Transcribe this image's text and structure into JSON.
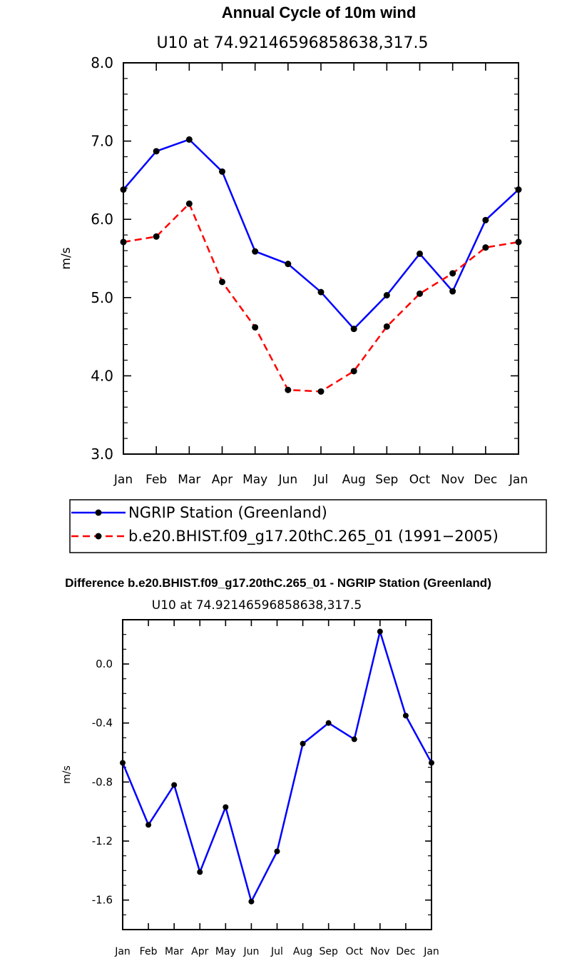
{
  "chart_data": [
    {
      "type": "line",
      "title": "Annual Cycle of 10m wind",
      "subtitle": "U10 at 74.92146596858638,317.5",
      "xlabel": "",
      "ylabel": "m/s",
      "categories": [
        "Jan",
        "Feb",
        "Mar",
        "Apr",
        "May",
        "Jun",
        "Jul",
        "Aug",
        "Sep",
        "Oct",
        "Nov",
        "Dec",
        "Jan"
      ],
      "ylim": [
        3.0,
        8.0
      ],
      "yticks": [
        "3.0",
        "4.0",
        "5.0",
        "6.0",
        "7.0",
        "8.0"
      ],
      "series": [
        {
          "name": "NGRIP Station (Greenland)",
          "color": "#0000ff",
          "dash": "solid",
          "values": [
            6.38,
            6.87,
            7.02,
            6.61,
            5.59,
            5.43,
            5.07,
            4.6,
            5.03,
            5.56,
            5.08,
            5.99,
            6.38
          ]
        },
        {
          "name": "b.e20.BHIST.f09_g17.20thC.265_01 (1991−2005)",
          "color": "#ff0000",
          "dash": "dashed",
          "values": [
            5.71,
            5.78,
            6.2,
            5.2,
            4.62,
            3.82,
            3.8,
            4.06,
            4.63,
            5.05,
            5.31,
            5.64,
            5.71
          ]
        }
      ],
      "legend": "below"
    },
    {
      "type": "line",
      "title": "Difference b.e20.BHIST.f09_g17.20thC.265_01 - NGRIP Station (Greenland)",
      "subtitle": "U10 at 74.92146596858638,317.5",
      "xlabel": "",
      "ylabel": "m/s",
      "categories": [
        "Jan",
        "Feb",
        "Mar",
        "Apr",
        "May",
        "Jun",
        "Jul",
        "Aug",
        "Sep",
        "Oct",
        "Nov",
        "Dec",
        "Jan"
      ],
      "ylim": [
        -1.8,
        0.3
      ],
      "yticks": [
        "-1.6",
        "-1.2",
        "-0.8",
        "-0.4",
        "0.0"
      ],
      "series": [
        {
          "name": "Difference",
          "color": "#0000ff",
          "dash": "solid",
          "values": [
            -0.67,
            -1.09,
            -0.82,
            -1.41,
            -0.97,
            -1.61,
            -1.27,
            -0.54,
            -0.4,
            -0.51,
            0.22,
            -0.35,
            -0.67
          ]
        }
      ]
    }
  ]
}
